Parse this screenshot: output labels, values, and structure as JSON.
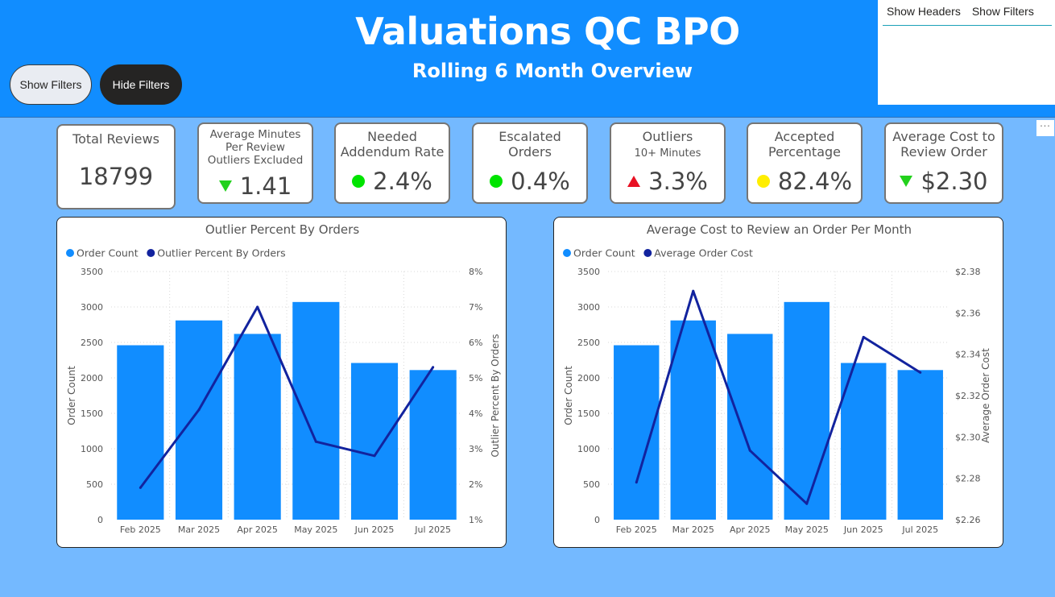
{
  "header": {
    "title": "Valuations QC BPO",
    "subtitle": "Rolling 6 Month Overview",
    "show_filters_button": "Show Filters",
    "hide_filters_button": "Hide Filters"
  },
  "tabs": {
    "show_headers": "Show Headers",
    "show_filters": "Show Filters"
  },
  "more_options": "···",
  "kpis": [
    {
      "label": "Total Reviews",
      "value": "18799"
    },
    {
      "label": "Average Minutes\nPer Review\nOutliers Excluded",
      "value": "1.41",
      "indicator": "down-green-icon"
    },
    {
      "label": "Needed\nAddendum Rate",
      "value": "2.4%",
      "indicator": "green-dot-icon"
    },
    {
      "label": "Escalated\nOrders",
      "value": "0.4%",
      "indicator": "green-dot-icon"
    },
    {
      "label": "Outliers",
      "sub": "10+ Minutes",
      "value": "3.3%",
      "indicator": "up-red-icon"
    },
    {
      "label": "Accepted\nPercentage",
      "value": "82.4%",
      "indicator": "yellow-dot-icon"
    },
    {
      "label": "Average Cost to\nReview Order",
      "value": "$2.30",
      "indicator": "down-green-icon"
    }
  ],
  "colors": {
    "bar": "#118dff",
    "line": "#12239e",
    "header_bg": "#118dff",
    "page_bg": "#74b9ff",
    "green": "#00e400",
    "yellow": "#ffee00",
    "red": "#e81123"
  },
  "chart_data": [
    {
      "type": "bar",
      "title": "Outlier Percent By Orders",
      "categories": [
        "Feb 2025",
        "Mar 2025",
        "Apr 2025",
        "May 2025",
        "Jun 2025",
        "Jul 2025"
      ],
      "series": [
        {
          "name": "Order Count",
          "type": "bar",
          "axis": "left",
          "values": [
            2460,
            2810,
            2620,
            3070,
            2210,
            2110
          ]
        },
        {
          "name": "Outlier Percent By Orders",
          "type": "line",
          "axis": "right",
          "values": [
            1.9,
            4.1,
            7.0,
            3.2,
            2.8,
            5.3
          ]
        }
      ],
      "ylabel": "Order Count",
      "ylabel_right": "Outlier Percent By Orders",
      "ylim": [
        0,
        3500
      ],
      "yticks": [
        "0",
        "500",
        "1000",
        "1500",
        "2000",
        "2500",
        "3000",
        "3500"
      ],
      "ylim_right": [
        1,
        8
      ],
      "yticks_right": [
        "1%",
        "2%",
        "3%",
        "4%",
        "5%",
        "6%",
        "7%",
        "8%"
      ],
      "legend": "top-left"
    },
    {
      "type": "bar",
      "title": "Average Cost to Review an Order Per Month",
      "categories": [
        "Feb 2025",
        "Mar 2025",
        "Apr 2025",
        "May 2025",
        "Jun 2025",
        "Jul 2025"
      ],
      "series": [
        {
          "name": "Order Count",
          "type": "bar",
          "axis": "left",
          "values": [
            2460,
            2810,
            2620,
            3070,
            2210,
            2110
          ]
        },
        {
          "name": "Average Order Cost",
          "type": "line",
          "axis": "right",
          "values": [
            2.261,
            2.369,
            2.279,
            2.249,
            2.343,
            2.323
          ]
        }
      ],
      "ylabel": "Order Count",
      "ylabel_right": "Average Order Cost",
      "ylim": [
        0,
        3500
      ],
      "yticks": [
        "0",
        "500",
        "1000",
        "1500",
        "2000",
        "2500",
        "3000",
        "3500"
      ],
      "ylim_right": [
        2.24,
        2.38
      ],
      "yticks_right": [
        "$2.26",
        "$2.28",
        "$2.30",
        "$2.32",
        "$2.34",
        "$2.36",
        "$2.38"
      ],
      "legend": "top-left"
    }
  ]
}
